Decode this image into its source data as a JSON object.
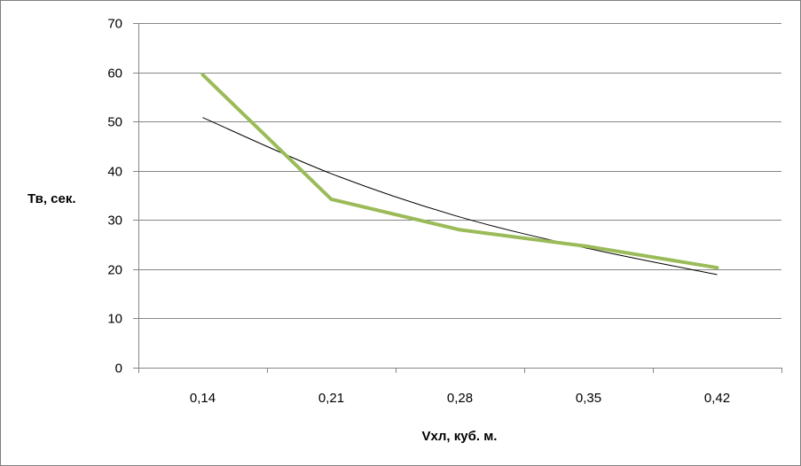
{
  "chart_data": {
    "type": "line",
    "title": "",
    "xlabel": "Vхл, куб. м.",
    "ylabel": "Тв, сек.",
    "categories": [
      "0,14",
      "0,21",
      "0,28",
      "0,35",
      "0,42"
    ],
    "ylim": [
      0,
      70
    ],
    "yticks": [
      "0",
      "10",
      "20",
      "30",
      "40",
      "50",
      "60",
      "70"
    ],
    "grid": "horizontal",
    "legend": "none",
    "series": [
      {
        "name": "",
        "color": "#9bbb59",
        "values": [
          59.5,
          34.2,
          28.0,
          24.6,
          20.3
        ]
      }
    ],
    "trendline": {
      "type": "power",
      "color": "#000000",
      "values": [
        50.8,
        39.4,
        30.6,
        24.2,
        18.9
      ]
    }
  }
}
